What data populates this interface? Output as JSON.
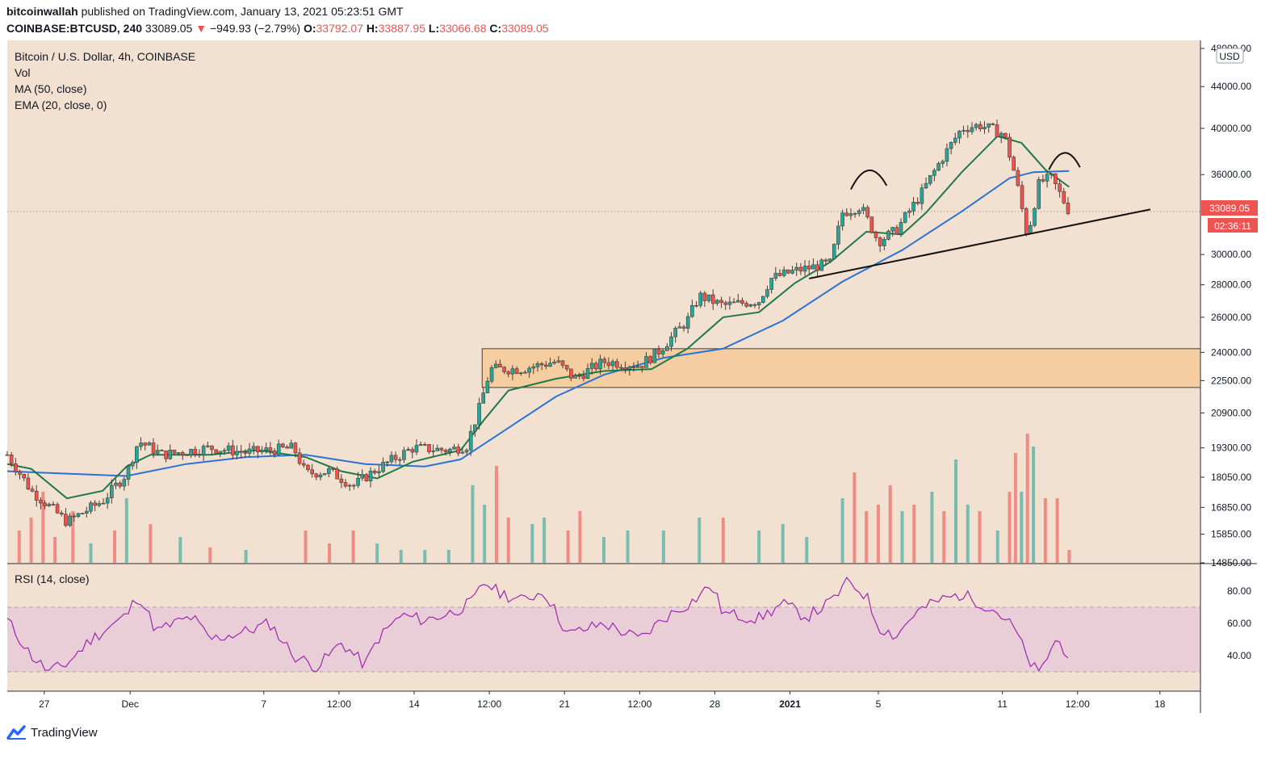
{
  "header": {
    "author": "bitcoinwallah",
    "published": "published on TradingView.com, January 13, 2021 05:23:51 GMT",
    "symbol": "COINBASE:BTCUSD, 240",
    "last": "33089.05",
    "change_arrow": "▼",
    "change": "−949.93 (−2.79%)",
    "o_label": "O:",
    "o_value": "33792.07",
    "h_label": "H:",
    "h_value": "33887.95",
    "l_label": "L:",
    "l_value": "33066.68",
    "c_label": "C:",
    "c_value": "33089.05"
  },
  "legend": [
    "Bitcoin / U.S. Dollar, 4h, COINBASE",
    "Vol",
    "MA (50, close)",
    "EMA (20, close, 0)"
  ],
  "rsi_label": "RSI (14, close)",
  "currency": "USD",
  "price_badge": "33089.05",
  "countdown_badge": "02:36:11",
  "footer": {
    "brand": "TradingView"
  },
  "colors": {
    "background": "#f2e1d1",
    "up": "#26a69a",
    "down": "#ef5350",
    "ma": "#2a73d6",
    "ema": "#1e7a4a",
    "zone": "#f5cc9c",
    "rsi": "#9c27b0",
    "rsi_band": "#e8c9d8"
  },
  "chart_data": {
    "type": "candlestick",
    "price_axis": {
      "ticks": [
        48000,
        44000,
        40000,
        36000,
        30000,
        28000,
        26000,
        24000,
        22500,
        20900,
        19300,
        18050,
        16850,
        15850,
        14850
      ],
      "tick_labels": [
        "48000.00",
        "44000.00",
        "40000.00",
        "36000.00",
        "30000.00",
        "28000.00",
        "26000.00",
        "24000.00",
        "22500.00",
        "20900.00",
        "19300.00",
        "18050.00",
        "16850.00",
        "15850.00",
        "14850.00"
      ],
      "scale": "log"
    },
    "rsi_axis": {
      "ticks": [
        80,
        60,
        40
      ],
      "tick_labels": [
        "80.00",
        "60.00",
        "40.00"
      ],
      "band": [
        30,
        70
      ]
    },
    "time_axis": {
      "labels": [
        {
          "text": "27",
          "frac": 0.031
        },
        {
          "text": "Dec",
          "frac": 0.103
        },
        {
          "text": "7",
          "frac": 0.215
        },
        {
          "text": "12:00",
          "frac": 0.278
        },
        {
          "text": "14",
          "frac": 0.341
        },
        {
          "text": "12:00",
          "frac": 0.404
        },
        {
          "text": "21",
          "frac": 0.467
        },
        {
          "text": "12:00",
          "frac": 0.53
        },
        {
          "text": "28",
          "frac": 0.593
        },
        {
          "text": "2021",
          "frac": 0.656,
          "bold": true
        },
        {
          "text": "5",
          "frac": 0.73
        },
        {
          "text": "11",
          "frac": 0.834
        },
        {
          "text": "12:00",
          "frac": 0.897
        },
        {
          "text": "18",
          "frac": 0.966
        }
      ]
    },
    "series_path": [
      [
        0,
        19000
      ],
      [
        0.02,
        17500
      ],
      [
        0.05,
        16300
      ],
      [
        0.08,
        17100
      ],
      [
        0.1,
        18200
      ],
      [
        0.11,
        19600
      ],
      [
        0.13,
        19000
      ],
      [
        0.17,
        19300
      ],
      [
        0.2,
        19100
      ],
      [
        0.24,
        19300
      ],
      [
        0.25,
        18200
      ],
      [
        0.27,
        18300
      ],
      [
        0.29,
        17700
      ],
      [
        0.31,
        18400
      ],
      [
        0.34,
        19300
      ],
      [
        0.37,
        19200
      ],
      [
        0.385,
        19400
      ],
      [
        0.395,
        21000
      ],
      [
        0.405,
        23100
      ],
      [
        0.43,
        23100
      ],
      [
        0.46,
        23500
      ],
      [
        0.475,
        22600
      ],
      [
        0.5,
        23500
      ],
      [
        0.53,
        23300
      ],
      [
        0.545,
        24000
      ],
      [
        0.57,
        25800
      ],
      [
        0.58,
        27300
      ],
      [
        0.6,
        26700
      ],
      [
        0.63,
        27000
      ],
      [
        0.64,
        28400
      ],
      [
        0.66,
        28900
      ],
      [
        0.69,
        29400
      ],
      [
        0.7,
        33000
      ],
      [
        0.715,
        33500
      ],
      [
        0.73,
        30900
      ],
      [
        0.745,
        31700
      ],
      [
        0.765,
        34300
      ],
      [
        0.785,
        37600
      ],
      [
        0.8,
        40000
      ],
      [
        0.815,
        40300
      ],
      [
        0.835,
        39500
      ],
      [
        0.845,
        35800
      ],
      [
        0.855,
        31200
      ],
      [
        0.865,
        35400
      ],
      [
        0.875,
        35700
      ],
      [
        0.89,
        33089
      ]
    ],
    "ma50_path": [
      [
        0,
        18300
      ],
      [
        0.05,
        18200
      ],
      [
        0.1,
        18100
      ],
      [
        0.15,
        18600
      ],
      [
        0.2,
        18900
      ],
      [
        0.25,
        19000
      ],
      [
        0.3,
        18600
      ],
      [
        0.35,
        18500
      ],
      [
        0.38,
        18800
      ],
      [
        0.42,
        20200
      ],
      [
        0.46,
        21700
      ],
      [
        0.5,
        22800
      ],
      [
        0.55,
        23700
      ],
      [
        0.6,
        24200
      ],
      [
        0.65,
        25800
      ],
      [
        0.7,
        28200
      ],
      [
        0.75,
        30300
      ],
      [
        0.8,
        33100
      ],
      [
        0.84,
        35700
      ],
      [
        0.86,
        36200
      ],
      [
        0.89,
        36300
      ]
    ],
    "ema20_path": [
      [
        0,
        18600
      ],
      [
        0.02,
        18400
      ],
      [
        0.05,
        17200
      ],
      [
        0.08,
        17500
      ],
      [
        0.1,
        18500
      ],
      [
        0.12,
        19000
      ],
      [
        0.17,
        19000
      ],
      [
        0.21,
        19200
      ],
      [
        0.25,
        18900
      ],
      [
        0.28,
        18300
      ],
      [
        0.31,
        18000
      ],
      [
        0.34,
        18700
      ],
      [
        0.38,
        19200
      ],
      [
        0.4,
        20600
      ],
      [
        0.42,
        22000
      ],
      [
        0.46,
        22600
      ],
      [
        0.5,
        23000
      ],
      [
        0.54,
        23100
      ],
      [
        0.57,
        24200
      ],
      [
        0.6,
        26000
      ],
      [
        0.63,
        26300
      ],
      [
        0.66,
        28100
      ],
      [
        0.69,
        29500
      ],
      [
        0.72,
        31600
      ],
      [
        0.75,
        31400
      ],
      [
        0.77,
        33000
      ],
      [
        0.8,
        36200
      ],
      [
        0.83,
        39300
      ],
      [
        0.85,
        38700
      ],
      [
        0.87,
        36400
      ],
      [
        0.89,
        35000
      ]
    ],
    "volume_bars": [
      [
        0.01,
        0.25,
        "down"
      ],
      [
        0.02,
        0.35,
        "down"
      ],
      [
        0.03,
        0.55,
        "down"
      ],
      [
        0.04,
        0.2,
        "down"
      ],
      [
        0.055,
        0.4,
        "down"
      ],
      [
        0.07,
        0.15,
        "up"
      ],
      [
        0.09,
        0.25,
        "down"
      ],
      [
        0.1,
        0.5,
        "up"
      ],
      [
        0.12,
        0.3,
        "down"
      ],
      [
        0.145,
        0.2,
        "up"
      ],
      [
        0.17,
        0.12,
        "down"
      ],
      [
        0.2,
        0.1,
        "up"
      ],
      [
        0.25,
        0.25,
        "down"
      ],
      [
        0.27,
        0.15,
        "down"
      ],
      [
        0.29,
        0.25,
        "down"
      ],
      [
        0.31,
        0.15,
        "up"
      ],
      [
        0.33,
        0.1,
        "up"
      ],
      [
        0.35,
        0.1,
        "up"
      ],
      [
        0.37,
        0.1,
        "up"
      ],
      [
        0.39,
        0.6,
        "up"
      ],
      [
        0.4,
        0.45,
        "up"
      ],
      [
        0.41,
        0.75,
        "down"
      ],
      [
        0.42,
        0.35,
        "down"
      ],
      [
        0.44,
        0.3,
        "up"
      ],
      [
        0.45,
        0.35,
        "up"
      ],
      [
        0.47,
        0.25,
        "down"
      ],
      [
        0.48,
        0.4,
        "down"
      ],
      [
        0.5,
        0.2,
        "up"
      ],
      [
        0.52,
        0.25,
        "up"
      ],
      [
        0.55,
        0.25,
        "up"
      ],
      [
        0.58,
        0.35,
        "up"
      ],
      [
        0.6,
        0.35,
        "down"
      ],
      [
        0.63,
        0.25,
        "up"
      ],
      [
        0.65,
        0.3,
        "up"
      ],
      [
        0.67,
        0.2,
        "up"
      ],
      [
        0.7,
        0.5,
        "up"
      ],
      [
        0.71,
        0.7,
        "down"
      ],
      [
        0.72,
        0.4,
        "down"
      ],
      [
        0.73,
        0.45,
        "down"
      ],
      [
        0.74,
        0.6,
        "down"
      ],
      [
        0.75,
        0.4,
        "up"
      ],
      [
        0.76,
        0.45,
        "down"
      ],
      [
        0.775,
        0.55,
        "up"
      ],
      [
        0.785,
        0.4,
        "down"
      ],
      [
        0.795,
        0.8,
        "up"
      ],
      [
        0.805,
        0.45,
        "up"
      ],
      [
        0.815,
        0.4,
        "down"
      ],
      [
        0.83,
        0.25,
        "up"
      ],
      [
        0.84,
        0.55,
        "down"
      ],
      [
        0.845,
        0.85,
        "down"
      ],
      [
        0.85,
        0.55,
        "up"
      ],
      [
        0.855,
        1.0,
        "down"
      ],
      [
        0.86,
        0.9,
        "up"
      ],
      [
        0.87,
        0.5,
        "down"
      ],
      [
        0.88,
        0.5,
        "down"
      ],
      [
        0.89,
        0.1,
        "down"
      ]
    ],
    "rsi_path": [
      [
        0,
        62
      ],
      [
        0.02,
        40
      ],
      [
        0.035,
        30
      ],
      [
        0.05,
        35
      ],
      [
        0.07,
        50
      ],
      [
        0.09,
        60
      ],
      [
        0.1,
        65
      ],
      [
        0.11,
        78
      ],
      [
        0.125,
        55
      ],
      [
        0.14,
        60
      ],
      [
        0.155,
        64
      ],
      [
        0.17,
        50
      ],
      [
        0.2,
        55
      ],
      [
        0.22,
        60
      ],
      [
        0.24,
        40
      ],
      [
        0.26,
        33
      ],
      [
        0.28,
        48
      ],
      [
        0.3,
        34
      ],
      [
        0.31,
        50
      ],
      [
        0.33,
        65
      ],
      [
        0.35,
        62
      ],
      [
        0.37,
        66
      ],
      [
        0.39,
        73
      ],
      [
        0.4,
        86
      ],
      [
        0.41,
        80
      ],
      [
        0.43,
        74
      ],
      [
        0.45,
        80
      ],
      [
        0.47,
        53
      ],
      [
        0.5,
        60
      ],
      [
        0.53,
        50
      ],
      [
        0.55,
        63
      ],
      [
        0.575,
        74
      ],
      [
        0.59,
        84
      ],
      [
        0.6,
        66
      ],
      [
        0.63,
        63
      ],
      [
        0.65,
        72
      ],
      [
        0.67,
        64
      ],
      [
        0.69,
        73
      ],
      [
        0.705,
        86
      ],
      [
        0.72,
        77
      ],
      [
        0.73,
        58
      ],
      [
        0.745,
        52
      ],
      [
        0.76,
        66
      ],
      [
        0.78,
        74
      ],
      [
        0.8,
        78
      ],
      [
        0.815,
        73
      ],
      [
        0.83,
        67
      ],
      [
        0.845,
        56
      ],
      [
        0.855,
        38
      ],
      [
        0.865,
        28
      ],
      [
        0.875,
        45
      ],
      [
        0.88,
        50
      ],
      [
        0.89,
        40
      ]
    ]
  }
}
